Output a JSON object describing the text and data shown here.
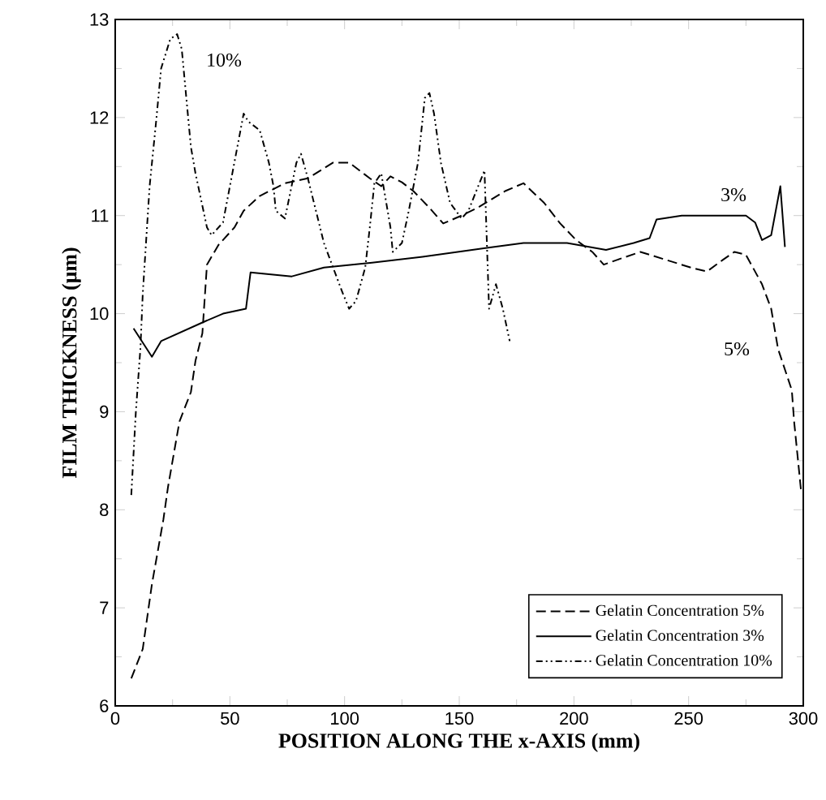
{
  "chart_data": {
    "type": "line",
    "xlabel": "POSITION ALONG THE  x-AXIS (mm)",
    "ylabel": "FILM THICKNESS (μm)",
    "xlim": [
      0,
      300
    ],
    "ylim": [
      6,
      13
    ],
    "xticks": [
      0,
      50,
      100,
      150,
      200,
      250,
      300
    ],
    "yticks": [
      6,
      7,
      8,
      9,
      10,
      11,
      12,
      13
    ],
    "legend": "bottom right",
    "grid": false,
    "marker": "none",
    "series": [
      {
        "name": "Gelatin Concentration 5%",
        "color": "#000000",
        "line_style": "dashed",
        "x": [
          7,
          12,
          16,
          21,
          23,
          28,
          33,
          35,
          38,
          40,
          45,
          52,
          56,
          63,
          74,
          84,
          95,
          102,
          111,
          116,
          120,
          125,
          130,
          137,
          143,
          151,
          158,
          170,
          178,
          187,
          194,
          201,
          208,
          213,
          219,
          229,
          240,
          251,
          258,
          265,
          270,
          275,
          282,
          286,
          289,
          295,
          296,
          299
        ],
        "values": [
          6.28,
          6.58,
          7.24,
          7.9,
          8.23,
          8.9,
          9.2,
          9.52,
          9.8,
          10.5,
          10.7,
          10.88,
          11.05,
          11.2,
          11.33,
          11.38,
          11.54,
          11.54,
          11.38,
          11.3,
          11.4,
          11.34,
          11.25,
          11.08,
          10.92,
          11.0,
          11.08,
          11.25,
          11.33,
          11.13,
          10.92,
          10.75,
          10.63,
          10.5,
          10.55,
          10.63,
          10.55,
          10.47,
          10.43,
          10.55,
          10.63,
          10.6,
          10.3,
          10.05,
          9.64,
          9.22,
          8.9,
          8.2
        ]
      },
      {
        "name": "Gelatin Concentration 3%",
        "color": "#000000",
        "line_style": "solid",
        "x": [
          8,
          16,
          20,
          39,
          47,
          57,
          59,
          77,
          91,
          112,
          134,
          162,
          178,
          197,
          214,
          226,
          233,
          236,
          247,
          275,
          279,
          282,
          286,
          290,
          292
        ],
        "values": [
          9.85,
          9.56,
          9.72,
          9.92,
          10.0,
          10.05,
          10.42,
          10.38,
          10.47,
          10.52,
          10.58,
          10.67,
          10.72,
          10.72,
          10.65,
          10.72,
          10.77,
          10.96,
          11.0,
          11.0,
          10.93,
          10.75,
          10.8,
          11.3,
          10.68
        ]
      },
      {
        "name": "Gelatin Concentration 10%",
        "color": "#000000",
        "line_style": "dashdot",
        "x": [
          7,
          9,
          11,
          12,
          15,
          18,
          20,
          24,
          27,
          29,
          33,
          35,
          40,
          42,
          47,
          56,
          58,
          63,
          67,
          69,
          70,
          74,
          79,
          81,
          84,
          91,
          95,
          99,
          102,
          105,
          109,
          111,
          113,
          116,
          120,
          121,
          125,
          128,
          132,
          135,
          137,
          139,
          142,
          146,
          151,
          154,
          161,
          163,
          166,
          169,
          172
        ],
        "values": [
          8.15,
          9.0,
          9.65,
          10.2,
          11.3,
          12.0,
          12.5,
          12.8,
          12.85,
          12.7,
          11.7,
          11.43,
          10.88,
          10.8,
          10.93,
          12.04,
          11.96,
          11.87,
          11.54,
          11.3,
          11.05,
          10.97,
          11.54,
          11.63,
          11.38,
          10.72,
          10.47,
          10.22,
          10.05,
          10.13,
          10.47,
          10.88,
          11.33,
          11.43,
          10.88,
          10.63,
          10.72,
          11.05,
          11.54,
          12.2,
          12.25,
          12.04,
          11.54,
          11.13,
          10.97,
          11.05,
          11.46,
          10.05,
          10.3,
          10.05,
          9.72
        ]
      }
    ],
    "annotations": [
      "10%",
      "3%",
      "5%"
    ]
  }
}
